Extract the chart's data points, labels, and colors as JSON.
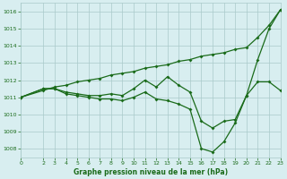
{
  "bg_color": "#d8eef0",
  "grid_color": "#aacaca",
  "line_color": "#1a6b1a",
  "title": "Graphe pression niveau de la mer (hPa)",
  "xlim": [
    0,
    23
  ],
  "ylim": [
    1007.5,
    1016.5
  ],
  "yticks": [
    1008,
    1009,
    1010,
    1011,
    1012,
    1013,
    1014,
    1015,
    1016
  ],
  "xticks": [
    0,
    2,
    3,
    4,
    5,
    6,
    7,
    8,
    9,
    10,
    11,
    12,
    13,
    14,
    15,
    16,
    17,
    18,
    19,
    20,
    21,
    22,
    23
  ],
  "series1_x": [
    0,
    2,
    3,
    4,
    5,
    6,
    7,
    8,
    9,
    10,
    11,
    12,
    13,
    14,
    15,
    16,
    17,
    18,
    19,
    20,
    21,
    22,
    23
  ],
  "series1_y": [
    1011.0,
    1011.4,
    1011.6,
    1011.7,
    1011.9,
    1012.0,
    1012.1,
    1012.3,
    1012.4,
    1012.5,
    1012.7,
    1012.8,
    1012.9,
    1013.1,
    1013.2,
    1013.4,
    1013.5,
    1013.6,
    1013.8,
    1013.9,
    1014.5,
    1015.2,
    1016.1
  ],
  "series2_x": [
    0,
    2,
    3,
    4,
    5,
    6,
    7,
    8,
    9,
    10,
    11,
    12,
    13,
    14,
    15,
    16,
    17,
    18,
    19,
    20,
    21,
    22,
    23
  ],
  "series2_y": [
    1011.0,
    1011.5,
    1011.5,
    1011.3,
    1011.2,
    1011.1,
    1011.1,
    1011.2,
    1011.1,
    1011.5,
    1012.0,
    1011.6,
    1012.2,
    1011.7,
    1011.3,
    1009.6,
    1009.2,
    1009.6,
    1009.7,
    1011.1,
    1013.2,
    1015.0,
    1016.1
  ],
  "series3_x": [
    0,
    2,
    3,
    4,
    5,
    6,
    7,
    8,
    9,
    10,
    11,
    12,
    13,
    14,
    15,
    16,
    17,
    18,
    19,
    20,
    21,
    22,
    23
  ],
  "series3_y": [
    1011.0,
    1011.5,
    1011.5,
    1011.2,
    1011.1,
    1011.0,
    1010.9,
    1010.9,
    1010.8,
    1011.0,
    1011.3,
    1010.9,
    1010.8,
    1010.6,
    1010.3,
    1008.0,
    1007.8,
    1008.4,
    1009.5,
    1011.1,
    1011.9,
    1011.9,
    1011.4
  ]
}
